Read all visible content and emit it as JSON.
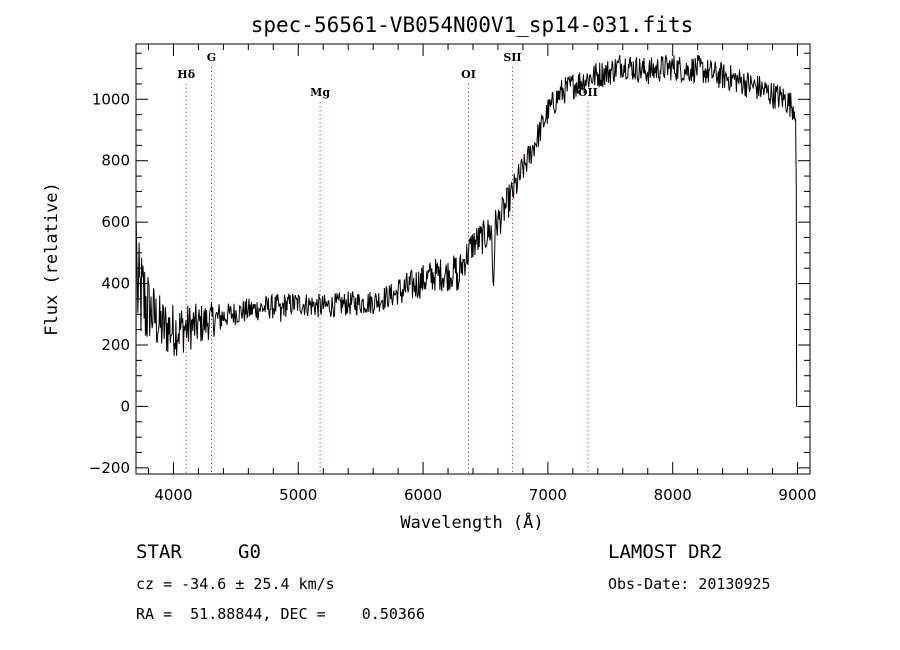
{
  "chart_data": {
    "type": "line",
    "title": "spec-56561-VB054N00V1_sp14-031.fits",
    "xlabel": "Wavelength (Å)",
    "ylabel": "Flux (relative)",
    "xlim": [
      3700,
      9100
    ],
    "ylim": [
      -220,
      1180
    ],
    "xticks": [
      4000,
      5000,
      6000,
      7000,
      8000,
      9000
    ],
    "yticks": [
      -200,
      0,
      200,
      400,
      600,
      800,
      1000
    ],
    "grid": false,
    "spectrum_anchor_points": [
      [
        3700,
        380
      ],
      [
        3800,
        320
      ],
      [
        3900,
        260
      ],
      [
        4000,
        250
      ],
      [
        4100,
        255
      ],
      [
        4200,
        265
      ],
      [
        4300,
        280
      ],
      [
        4500,
        305
      ],
      [
        4700,
        320
      ],
      [
        5000,
        335
      ],
      [
        5200,
        325
      ],
      [
        5400,
        335
      ],
      [
        5600,
        340
      ],
      [
        5800,
        370
      ],
      [
        5900,
        390
      ],
      [
        6000,
        410
      ],
      [
        6100,
        430
      ],
      [
        6200,
        430
      ],
      [
        6300,
        450
      ],
      [
        6400,
        530
      ],
      [
        6500,
        555
      ],
      [
        6600,
        600
      ],
      [
        6700,
        680
      ],
      [
        6800,
        770
      ],
      [
        6900,
        860
      ],
      [
        7000,
        960
      ],
      [
        7100,
        1020
      ],
      [
        7200,
        1045
      ],
      [
        7300,
        1065
      ],
      [
        7400,
        1080
      ],
      [
        7500,
        1090
      ],
      [
        7600,
        1115
      ],
      [
        7700,
        1100
      ],
      [
        7800,
        1090
      ],
      [
        7900,
        1100
      ],
      [
        8000,
        1105
      ],
      [
        8100,
        1095
      ],
      [
        8200,
        1100
      ],
      [
        8300,
        1085
      ],
      [
        8400,
        1075
      ],
      [
        8500,
        1065
      ],
      [
        8600,
        1050
      ],
      [
        8700,
        1035
      ],
      [
        8800,
        1015
      ],
      [
        8900,
        1000
      ],
      [
        8980,
        970
      ]
    ],
    "absorption_features": [
      {
        "wavelength": 6563,
        "depth": 210
      },
      {
        "wavelength": 4861,
        "depth": 40
      },
      {
        "wavelength": 6280,
        "depth": 60
      }
    ],
    "spectral_lines": [
      {
        "label": "Hδ",
        "wavelength": 4102,
        "label_y": 1070
      },
      {
        "label": "G",
        "wavelength": 4305,
        "label_y": 1125
      },
      {
        "label": "Mg",
        "wavelength": 5175,
        "label_y": 1010
      },
      {
        "label": "OI",
        "wavelength": 6364,
        "label_y": 1070
      },
      {
        "label": "SII",
        "wavelength": 6716,
        "label_y": 1125
      },
      {
        "label": "OII",
        "wavelength": 7320,
        "label_y": 1010
      }
    ]
  },
  "info": {
    "object_class": "STAR",
    "subclass": "G0",
    "survey": "LAMOST DR2",
    "cz": "cz = -34.6 ± 25.4 km/s",
    "obs_date": "Obs-Date: 20130925",
    "coords": "RA =  51.88844, DEC =    0.50366"
  },
  "colors": {
    "line": "#000000",
    "marker": "#cc0000"
  }
}
